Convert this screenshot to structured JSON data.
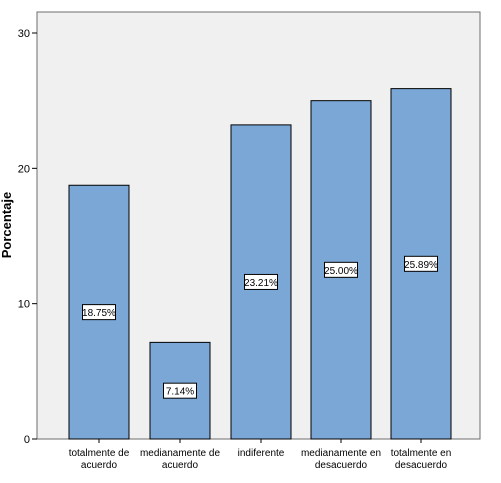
{
  "chart_data": {
    "type": "bar",
    "ylabel": "Porcentaje",
    "xlabel": "",
    "ylim": [
      0,
      30
    ],
    "yticks": [
      "0",
      "10",
      "20",
      "30"
    ],
    "categories": [
      [
        "totalmente de",
        "acuerdo"
      ],
      [
        "medianamente de",
        "acuerdo"
      ],
      [
        "indiferente"
      ],
      [
        "medianamente en",
        "desacuerdo"
      ],
      [
        "totalmente en",
        "desacuerdo"
      ]
    ],
    "values": [
      18.75,
      7.14,
      23.21,
      25.0,
      25.89
    ],
    "data_labels": [
      "18.75%",
      "7.14%",
      "23.21%",
      "25.00%",
      "25.89%"
    ],
    "bar_color": "#7ba7d7",
    "bar_border_color": "#000000",
    "plot_background": "#f0f0f0",
    "grid": false,
    "legend": "none"
  }
}
